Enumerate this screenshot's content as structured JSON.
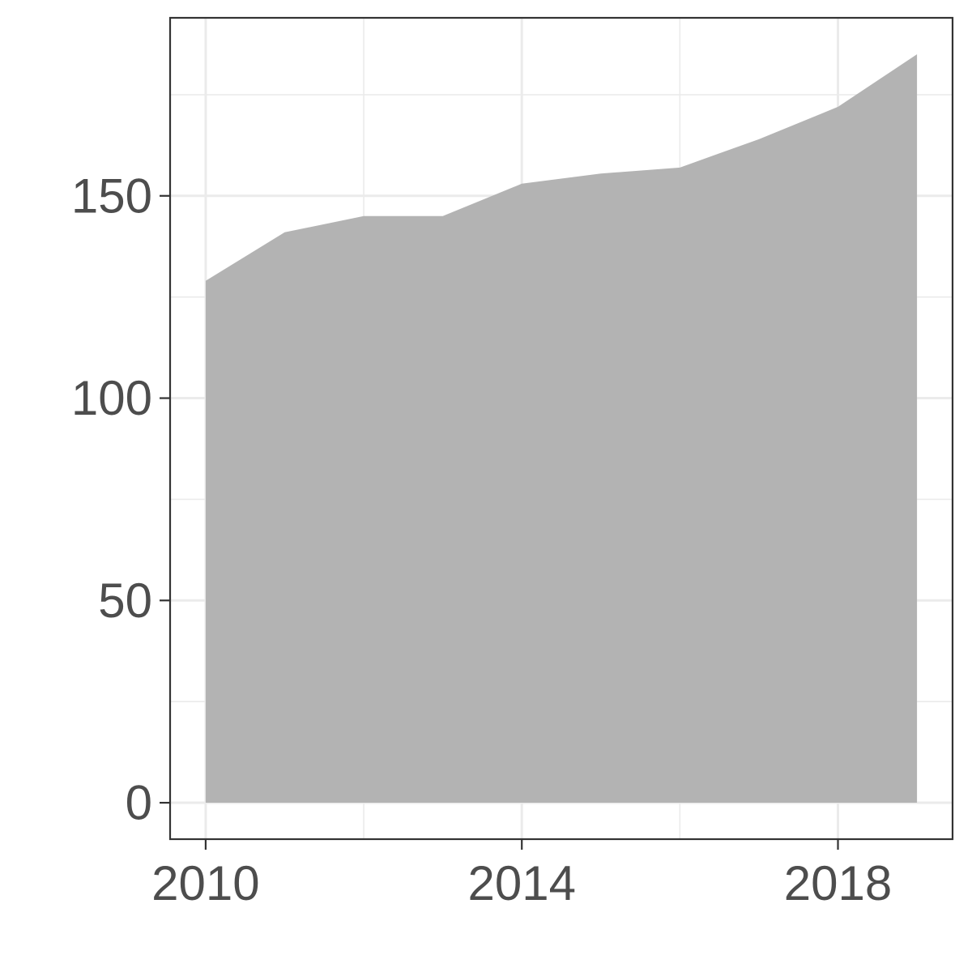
{
  "chart_data": {
    "type": "area",
    "title": "",
    "xlabel": "",
    "ylabel": "",
    "x": [
      2010,
      2011,
      2012,
      2013,
      2014,
      2015,
      2016,
      2017,
      2018,
      2019
    ],
    "values": [
      129,
      141,
      145,
      145,
      153,
      155.5,
      157,
      164,
      172,
      185
    ],
    "xlim": [
      2009.55,
      2019.45
    ],
    "ylim": [
      -9,
      194
    ],
    "x_ticks": [
      2010,
      2014,
      2018
    ],
    "x_tick_labels": [
      "2010",
      "2014",
      "2018"
    ],
    "x_minor_ticks": [
      2012,
      2016
    ],
    "y_ticks": [
      0,
      50,
      100,
      150
    ],
    "y_tick_labels": [
      "0",
      "50",
      "100",
      "150"
    ],
    "y_minor_ticks": [
      25,
      75,
      125,
      175
    ],
    "grid": true,
    "legend": "none",
    "fill_color": "#b3b3b3",
    "grid_color": "#ebebeb",
    "border_color": "#333333",
    "tick_color": "#333333",
    "text_color": "#4d4d4d"
  }
}
